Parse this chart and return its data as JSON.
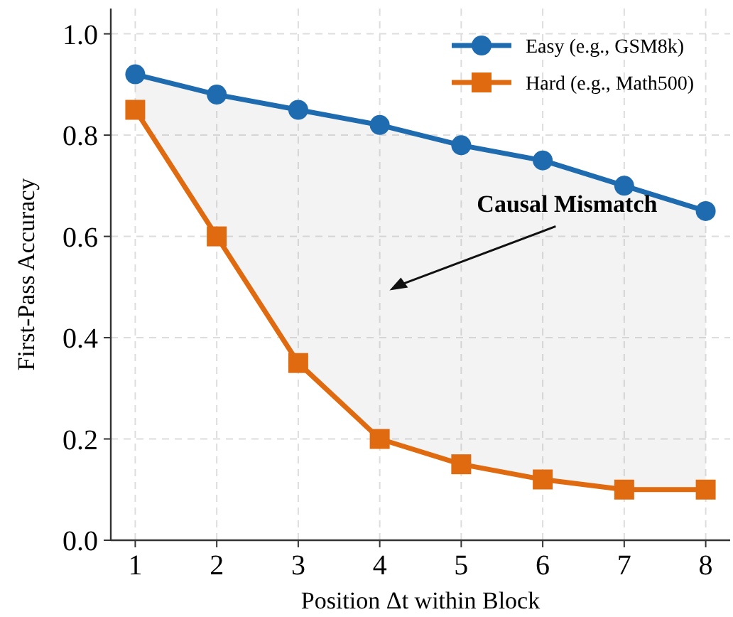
{
  "chart_data": {
    "type": "line",
    "xlabel": "Position Δt within Block",
    "ylabel": "First-Pass Accuracy",
    "x": [
      1,
      2,
      3,
      4,
      5,
      6,
      7,
      8
    ],
    "series": [
      {
        "name": "Easy (e.g., GSM8k)",
        "color": "#1f6bb0",
        "marker": "circle",
        "values": [
          0.92,
          0.88,
          0.85,
          0.82,
          0.78,
          0.75,
          0.7,
          0.65
        ],
        "lower": [
          0.85,
          0.6,
          0.35,
          0.2,
          0.15,
          0.12,
          0.1,
          0.1
        ],
        "upper": [
          0.92,
          0.88,
          0.85,
          0.82,
          0.78,
          0.75,
          0.7,
          0.65
        ]
      },
      {
        "name": "Hard (e.g., Math500)",
        "color": "#e06a10",
        "marker": "square",
        "values": [
          0.85,
          0.6,
          0.35,
          0.2,
          0.15,
          0.12,
          0.1,
          0.1
        ]
      }
    ],
    "xlim": [
      0.7,
      8.3
    ],
    "xticks": [
      1,
      2,
      3,
      4,
      5,
      6,
      7,
      8
    ],
    "ylim": [
      0,
      1.05
    ],
    "yticks": [
      {
        "value": 0,
        "label": "0.0"
      },
      {
        "value": 0.2,
        "label": "0.2"
      },
      {
        "value": 0.4,
        "label": "0.4"
      },
      {
        "value": 0.6,
        "label": "0.6"
      },
      {
        "value": 0.8,
        "label": "0.8"
      },
      {
        "value": 1.0,
        "label": "1.0"
      }
    ],
    "grid": true,
    "legend": "top right",
    "line_style": "solid",
    "annotations": [
      "Causal Mismatch"
    ]
  }
}
